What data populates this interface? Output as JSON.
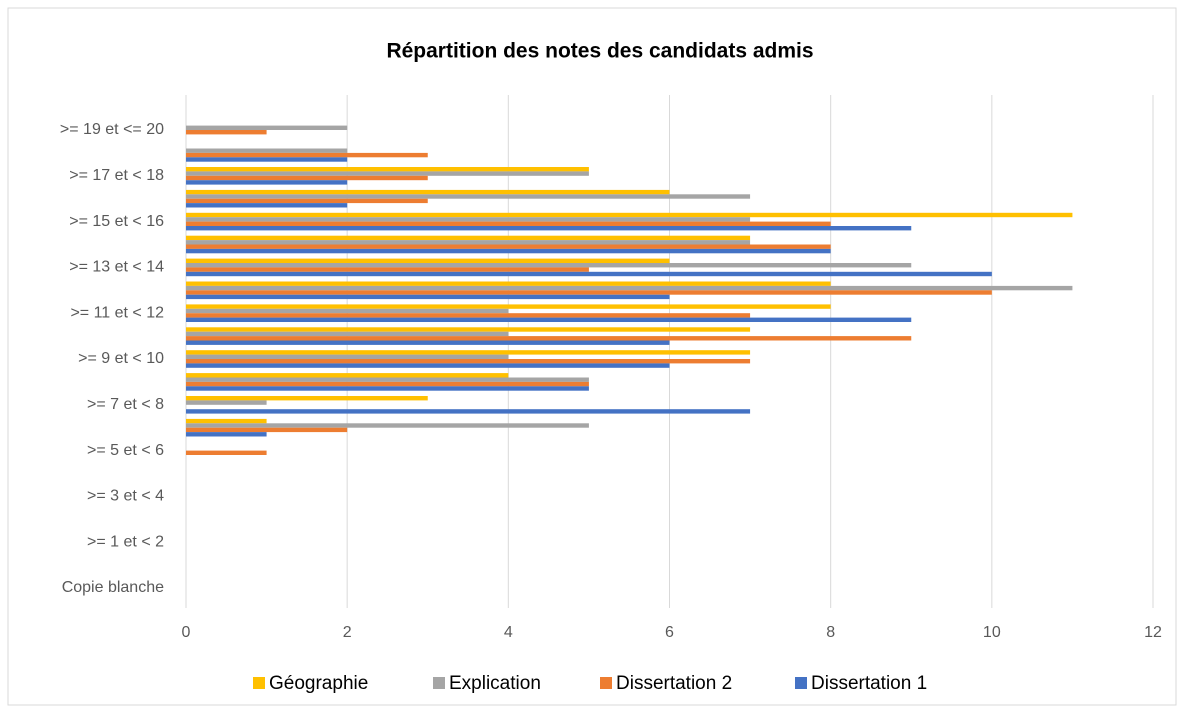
{
  "chart_data": {
    "type": "barh",
    "title": "Répartition des notes des candidats admis",
    "categories": [
      "Copie blanche",
      null,
      ">= 1 et < 2",
      null,
      ">= 3 et < 4",
      null,
      ">= 5 et < 6",
      null,
      ">= 7 et < 8",
      null,
      ">= 9 et < 10",
      null,
      ">= 11 et < 12",
      null,
      ">= 13 et < 14",
      null,
      ">= 15 et < 16",
      null,
      ">= 17 et < 18",
      null,
      ">= 19 et <= 20"
    ],
    "series": [
      {
        "name": "Géographie",
        "color": "#ffc000",
        "values": [
          0,
          0,
          0,
          0,
          0,
          0,
          0,
          1,
          3,
          4,
          7,
          7,
          8,
          8,
          6,
          7,
          11,
          6,
          5,
          0,
          0
        ]
      },
      {
        "name": "Explication",
        "color": "#a5a5a5",
        "values": [
          0,
          0,
          0,
          0,
          0,
          0,
          0,
          5,
          1,
          5,
          4,
          4,
          4,
          11,
          9,
          7,
          7,
          7,
          5,
          2,
          2
        ]
      },
      {
        "name": "Dissertation 2",
        "color": "#ed7d31",
        "values": [
          0,
          0,
          0,
          0,
          0,
          0,
          1,
          2,
          0,
          5,
          7,
          9,
          7,
          10,
          5,
          8,
          8,
          3,
          3,
          3,
          1
        ]
      },
      {
        "name": "Dissertation 1",
        "color": "#4472c4",
        "values": [
          0,
          0,
          0,
          0,
          0,
          0,
          0,
          1,
          7,
          5,
          6,
          6,
          9,
          6,
          10,
          8,
          9,
          2,
          2,
          2,
          0
        ]
      }
    ],
    "xlim": [
      0,
      12
    ],
    "xticks": [
      0,
      2,
      4,
      6,
      8,
      10,
      12
    ],
    "grid": true,
    "legend": "bottom"
  }
}
